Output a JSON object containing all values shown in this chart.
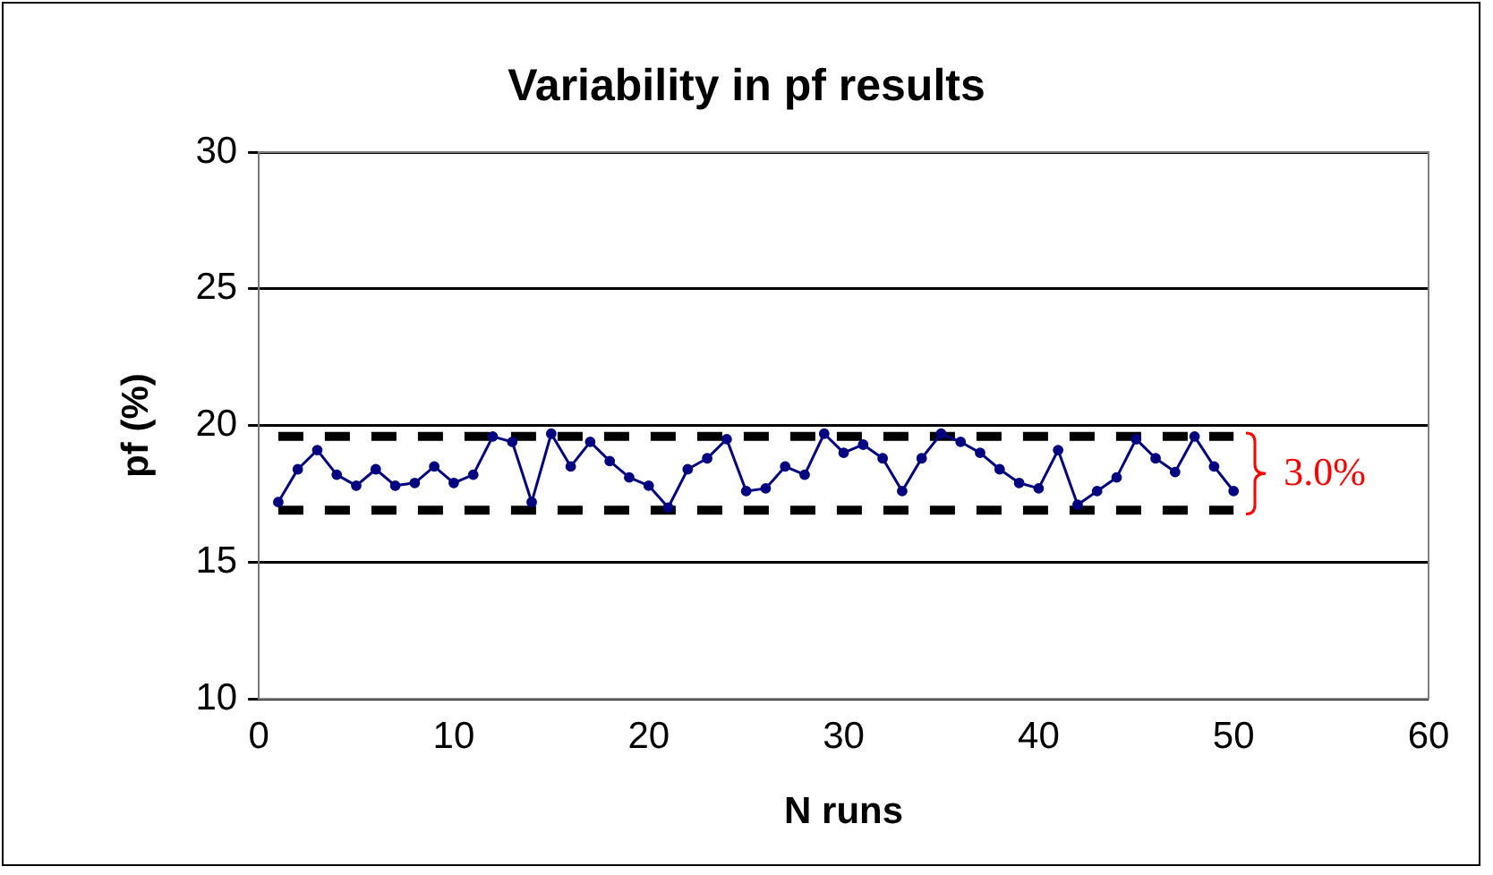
{
  "chart_data": {
    "type": "line",
    "title": "Variability in pf results",
    "xlabel": "N runs",
    "ylabel": "pf (%)",
    "x": [
      1,
      2,
      3,
      4,
      5,
      6,
      7,
      8,
      9,
      10,
      11,
      12,
      13,
      14,
      15,
      16,
      17,
      18,
      19,
      20,
      21,
      22,
      23,
      24,
      25,
      26,
      27,
      28,
      29,
      30,
      31,
      32,
      33,
      34,
      35,
      36,
      37,
      38,
      39,
      40,
      41,
      42,
      43,
      44,
      45,
      46,
      47,
      48,
      49,
      50
    ],
    "series": [
      {
        "color": "#000080",
        "values": [
          17.2,
          18.4,
          19.1,
          18.2,
          17.8,
          18.4,
          17.8,
          17.9,
          18.5,
          17.9,
          18.2,
          19.6,
          19.4,
          17.2,
          19.7,
          18.5,
          19.4,
          18.7,
          18.1,
          17.8,
          17.0,
          18.4,
          18.8,
          19.5,
          17.6,
          17.7,
          18.5,
          18.2,
          19.7,
          19.0,
          19.3,
          18.8,
          17.6,
          18.8,
          19.7,
          19.4,
          19.0,
          18.4,
          17.9,
          17.7,
          19.1,
          17.1,
          17.6,
          18.1,
          19.5,
          18.8,
          18.3,
          19.6,
          18.5,
          17.6
        ]
      }
    ],
    "xlim": [
      0,
      60
    ],
    "xticks": [
      0,
      10,
      20,
      30,
      40,
      50,
      60
    ],
    "ylim": [
      10,
      30
    ],
    "yticks": [
      10,
      15,
      20,
      25,
      30
    ],
    "grid": "y",
    "legend": false,
    "marker": "circle",
    "line_style": "solid",
    "ref_lines": [
      {
        "axis": "y",
        "value": 19.6,
        "color": "#000000",
        "line_style": "dashed"
      },
      {
        "axis": "y",
        "value": 16.9,
        "color": "#000000",
        "line_style": "dashed"
      }
    ],
    "annotations": [
      "3.0%"
    ]
  }
}
